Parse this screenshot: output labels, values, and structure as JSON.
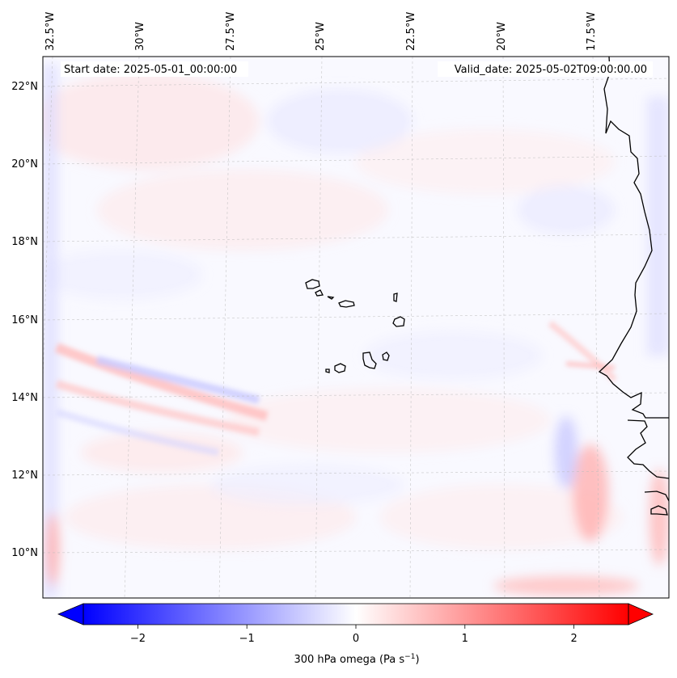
{
  "map": {
    "start_label": "Start date: 2025-05-01_00:00:00",
    "valid_label": "Valid_date: 2025-05-02T09:00:00.00",
    "lon_labels": [
      "32.5°W",
      "30°W",
      "27.5°W",
      "25°W",
      "22.5°W",
      "20°W",
      "17.5°W"
    ],
    "lat_labels": [
      "22°N",
      "20°N",
      "18°N",
      "16°N",
      "14°N",
      "12°N",
      "10°N"
    ],
    "colors": {
      "negative": "#0000ff",
      "neutral": "#ffffff",
      "positive": "#ff0000",
      "coast": "#000000"
    }
  },
  "colorbar": {
    "min": -2.5,
    "max": 2.5,
    "ticks": [
      -2,
      -1,
      0,
      1,
      2
    ],
    "tick_labels": [
      "−2",
      "−1",
      "0",
      "1",
      "2"
    ],
    "label": "300 hPa omega (Pa s",
    "label_sup": "−1",
    "label_close": ")"
  }
}
